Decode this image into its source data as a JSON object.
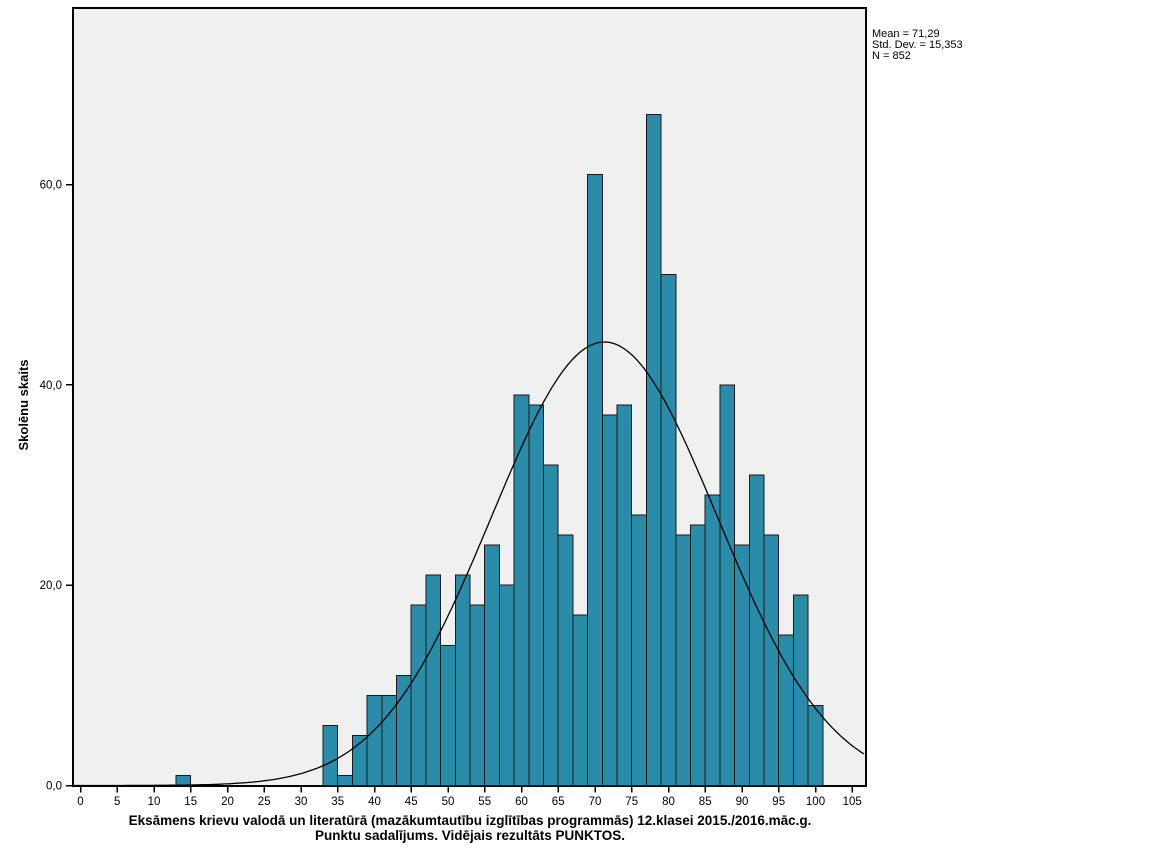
{
  "title": {
    "line1": "Eksāmens krievu valodā un literatūrā (mazākumtautību izglītības programmās) 12.klasei 2015./2016.māc.g.",
    "line2": "Punktu sadalījums. Vidējais rezultāts PUNKTOS."
  },
  "stats": {
    "mean": "Mean = 71,29",
    "std_dev": "Std. Dev. = 15,353",
    "n": "N = 852"
  },
  "chart_data": {
    "type": "bar",
    "subtype": "histogram-with-normal-curve",
    "ylabel": "Skolēnu skaits",
    "bin_width": 2,
    "bins": [
      {
        "x": 13,
        "count": 1
      },
      {
        "x": 33,
        "count": 6
      },
      {
        "x": 35,
        "count": 1
      },
      {
        "x": 37,
        "count": 5
      },
      {
        "x": 39,
        "count": 9
      },
      {
        "x": 41,
        "count": 9
      },
      {
        "x": 43,
        "count": 11
      },
      {
        "x": 45,
        "count": 18
      },
      {
        "x": 47,
        "count": 21
      },
      {
        "x": 49,
        "count": 14
      },
      {
        "x": 51,
        "count": 21
      },
      {
        "x": 53,
        "count": 18
      },
      {
        "x": 55,
        "count": 24
      },
      {
        "x": 57,
        "count": 20
      },
      {
        "x": 59,
        "count": 39
      },
      {
        "x": 61,
        "count": 38
      },
      {
        "x": 63,
        "count": 32
      },
      {
        "x": 65,
        "count": 25
      },
      {
        "x": 67,
        "count": 17
      },
      {
        "x": 69,
        "count": 61
      },
      {
        "x": 71,
        "count": 37
      },
      {
        "x": 73,
        "count": 38
      },
      {
        "x": 75,
        "count": 27
      },
      {
        "x": 77,
        "count": 67
      },
      {
        "x": 79,
        "count": 51
      },
      {
        "x": 81,
        "count": 25
      },
      {
        "x": 83,
        "count": 26
      },
      {
        "x": 85,
        "count": 29
      },
      {
        "x": 87,
        "count": 40
      },
      {
        "x": 89,
        "count": 24
      },
      {
        "x": 91,
        "count": 31
      },
      {
        "x": 93,
        "count": 25
      },
      {
        "x": 95,
        "count": 15
      },
      {
        "x": 97,
        "count": 19
      },
      {
        "x": 99,
        "count": 8
      }
    ],
    "x_ticks": [
      0,
      5,
      10,
      15,
      20,
      25,
      30,
      35,
      40,
      45,
      50,
      55,
      60,
      65,
      70,
      75,
      80,
      85,
      90,
      95,
      100,
      105
    ],
    "y_ticks": [
      {
        "value": 0,
        "label": "0,0"
      },
      {
        "value": 20,
        "label": "20,0"
      },
      {
        "value": 40,
        "label": "40,0"
      },
      {
        "value": 60,
        "label": "60,0"
      }
    ],
    "xlim": [
      -1,
      106.8
    ],
    "ylim": [
      0,
      77.6
    ],
    "grid": false,
    "legend_position": "top-right-outside",
    "normal_curve": {
      "mean": 71.29,
      "std_dev": 15.353,
      "n": 852
    },
    "colors": {
      "bar_fill": "#2b8caa",
      "bar_border": "#1a1a1a",
      "plot_bg": "#f0f0f0",
      "plot_border": "#000000",
      "curve": "#000000",
      "page_bg": "#ffffff"
    }
  }
}
